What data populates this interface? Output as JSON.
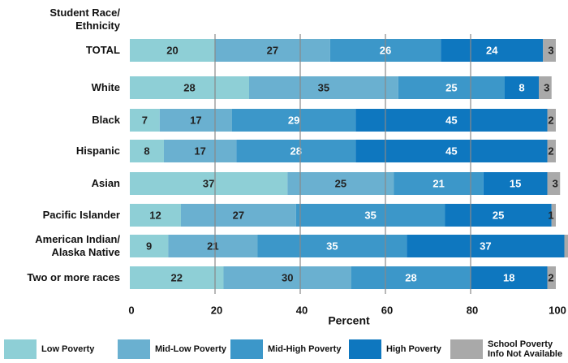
{
  "chart_data": {
    "type": "stacked_barh",
    "y_axis_label": "Student Race/ Ethnicity",
    "x_axis_label": "Percent",
    "categories": [
      "TOTAL",
      "White",
      "Black",
      "Hispanic",
      "Asian",
      "Pacific Islander",
      "American Indian/ Alaska Native",
      "Two or more races"
    ],
    "series": [
      {
        "name": "Low Poverty",
        "color": "#8ecfd6",
        "values": [
          20,
          28,
          7,
          8,
          37,
          12,
          9,
          22
        ]
      },
      {
        "name": "Mid-Low Poverty",
        "color": "#6ab0d0",
        "values": [
          27,
          35,
          17,
          17,
          25,
          27,
          21,
          30
        ]
      },
      {
        "name": "Mid-High Poverty",
        "color": "#3c97c9",
        "values": [
          26,
          25,
          29,
          28,
          21,
          35,
          35,
          28
        ]
      },
      {
        "name": "High Poverty",
        "color": "#0e77bf",
        "values": [
          24,
          8,
          45,
          45,
          15,
          25,
          37,
          18
        ]
      },
      {
        "name": "School Poverty Info Not Available",
        "color": "#a9a9a9",
        "values": [
          3,
          3,
          2,
          2,
          3,
          1,
          3,
          2
        ]
      }
    ],
    "xlim": [
      0,
      100
    ],
    "xticks": [
      0,
      20,
      40,
      60,
      80,
      100
    ],
    "grid": true
  }
}
